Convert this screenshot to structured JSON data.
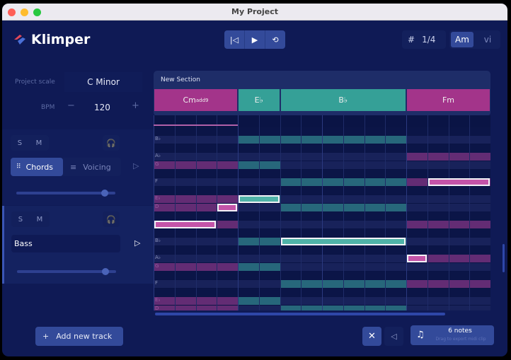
{
  "window": {
    "title": "My Project"
  },
  "app": {
    "name": "Klimper"
  },
  "transport": {
    "rewind_icon": "skip-back-icon",
    "play_icon": "play-icon",
    "loop_icon": "loop-icon"
  },
  "grid": {
    "icon": "grid-snap-icon",
    "value": "1/4"
  },
  "key_mode": {
    "options": [
      "Am",
      "vi"
    ],
    "selected": "Am"
  },
  "project": {
    "scale_label": "Project scale",
    "scale_value": "C Minor",
    "bpm_label": "BPM",
    "bpm_value": "120",
    "minus": "−",
    "plus": "+"
  },
  "tracks": [
    {
      "solo": "S",
      "mute": "M",
      "tabs": [
        "Chords",
        "Voicing"
      ],
      "active_tab": "Chords",
      "volume": 0.87
    },
    {
      "solo": "S",
      "mute": "M",
      "name": "Bass",
      "volume": 0.87
    }
  ],
  "add_track": {
    "icon": "+",
    "label": "Add new track"
  },
  "section": {
    "name": "New Section",
    "chords": [
      {
        "root": "Cm",
        "ext": "add9",
        "start": 0,
        "length": 4,
        "color": "#a3348a"
      },
      {
        "root": "E♭",
        "ext": "",
        "start": 4,
        "length": 2,
        "color": "#35a097"
      },
      {
        "root": "B♭",
        "ext": "",
        "start": 6,
        "length": 6,
        "color": "#35a097"
      },
      {
        "root": "Fm",
        "ext": "",
        "start": 12,
        "length": 4,
        "color": "#a3348a"
      }
    ]
  },
  "piano_roll": {
    "beats": 16,
    "rows": [
      "B",
      "B♭",
      "A",
      "A♭",
      "G",
      "G♭",
      "F",
      "E",
      "E♭",
      "D",
      "D♭",
      "C",
      "B",
      "B♭",
      "A",
      "A♭",
      "G",
      "G♭",
      "F",
      "E",
      "E♭",
      "D"
    ],
    "scale_rows": [
      "B♭",
      "A♭",
      "G",
      "F",
      "E♭",
      "D",
      "C"
    ],
    "chord_tones": [
      {
        "chord": 0,
        "rows": [
          4,
          8,
          9,
          11,
          16,
          20,
          21
        ]
      },
      {
        "chord": 1,
        "rows": [
          1,
          4,
          8,
          13,
          16,
          20
        ]
      },
      {
        "chord": 2,
        "rows": [
          1,
          6,
          9,
          13,
          18,
          21
        ]
      },
      {
        "chord": 3,
        "rows": [
          3,
          6,
          11,
          15,
          18
        ]
      }
    ],
    "notes": [
      {
        "pitch": "C",
        "row": 11,
        "start": 0,
        "length": 3
      },
      {
        "pitch": "D",
        "row": 9,
        "start": 3,
        "length": 1
      },
      {
        "pitch": "E♭",
        "row": 8,
        "start": 4,
        "length": 2
      },
      {
        "pitch": "B♭",
        "row": 13,
        "start": 6,
        "length": 6
      },
      {
        "pitch": "A♭",
        "row": 15,
        "start": 12,
        "length": 1
      },
      {
        "pitch": "F",
        "row": 6,
        "start": 13,
        "length": 3
      }
    ]
  },
  "footer": {
    "fit_icon": "fit-to-screen-icon",
    "volume_icon": "speaker-icon",
    "notes_count": "6 notes",
    "export_hint": "Drag to export midi clip",
    "music_icon": "music-note-icon"
  },
  "colors": {
    "magenta": "#a3348a",
    "teal": "#35a097",
    "background": "#0f1a55"
  }
}
